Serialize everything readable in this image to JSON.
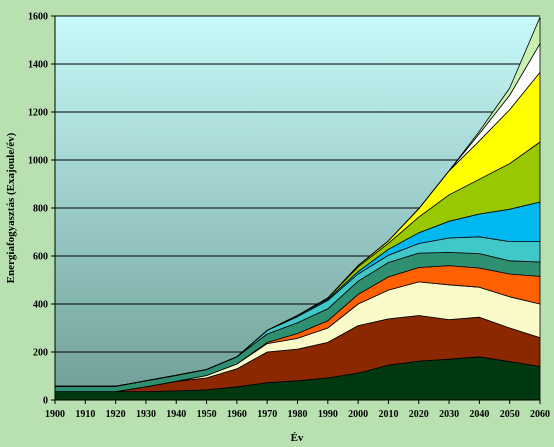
{
  "colors": {
    "background": "#b8e0b0",
    "plot_top": "#c8fafa",
    "plot_bottom": "#6e9e96"
  },
  "chart_data": {
    "type": "area",
    "stacked": true,
    "title": "",
    "xlabel": "Év",
    "ylabel": "Energiafogyasztás (Exajoule/év)",
    "x": [
      1900,
      1910,
      1920,
      1930,
      1940,
      1950,
      1960,
      1970,
      1980,
      1990,
      2000,
      2010,
      2020,
      2030,
      2040,
      2050,
      2060
    ],
    "xlim": [
      1900,
      2060
    ],
    "ylim": [
      0,
      1600
    ],
    "yticks": [
      0,
      200,
      400,
      600,
      800,
      1000,
      1200,
      1400,
      1600
    ],
    "grid": true,
    "series": [
      {
        "color": "#003810",
        "values": [
          35,
          35,
          35,
          35,
          38,
          42,
          55,
          72,
          80,
          92,
          112,
          145,
          162,
          170,
          180,
          160,
          140
        ]
      },
      {
        "color": "#8c2800",
        "values": [
          0,
          0,
          0,
          20,
          40,
          50,
          75,
          128,
          132,
          148,
          198,
          193,
          190,
          165,
          165,
          140,
          120
        ]
      },
      {
        "color": "#fafac8",
        "values": [
          0,
          0,
          0,
          0,
          0,
          10,
          20,
          35,
          45,
          60,
          90,
          120,
          140,
          145,
          125,
          130,
          140
        ]
      },
      {
        "color": "#ff6000",
        "values": [
          0,
          0,
          0,
          0,
          0,
          0,
          0,
          5,
          20,
          30,
          40,
          55,
          60,
          80,
          80,
          95,
          115
        ]
      },
      {
        "color": "#2e9070",
        "values": [
          22,
          22,
          22,
          25,
          25,
          25,
          30,
          35,
          45,
          50,
          55,
          60,
          60,
          55,
          60,
          55,
          60
        ]
      },
      {
        "color": "#40c8c8",
        "values": [
          0,
          0,
          0,
          0,
          0,
          0,
          0,
          15,
          25,
          35,
          30,
          30,
          40,
          60,
          70,
          80,
          85
        ]
      },
      {
        "color": "#00b8f0",
        "values": [
          0,
          0,
          0,
          0,
          0,
          0,
          0,
          0,
          5,
          5,
          10,
          25,
          45,
          70,
          95,
          135,
          165
        ]
      },
      {
        "color": "#98c800",
        "values": [
          0,
          0,
          0,
          0,
          0,
          0,
          0,
          0,
          0,
          5,
          20,
          25,
          65,
          110,
          145,
          190,
          250
        ]
      },
      {
        "color": "#ffff00",
        "values": [
          0,
          0,
          0,
          0,
          0,
          0,
          0,
          0,
          0,
          0,
          5,
          10,
          35,
          100,
          160,
          225,
          290
        ]
      },
      {
        "color": "#ffffff",
        "values": [
          0,
          0,
          0,
          0,
          0,
          0,
          0,
          0,
          0,
          0,
          0,
          0,
          0,
          0,
          30,
          60,
          120
        ]
      },
      {
        "color": "#c8f0b0",
        "values": [
          0,
          0,
          0,
          0,
          0,
          0,
          0,
          0,
          0,
          0,
          0,
          0,
          0,
          0,
          10,
          30,
          110
        ]
      }
    ]
  }
}
